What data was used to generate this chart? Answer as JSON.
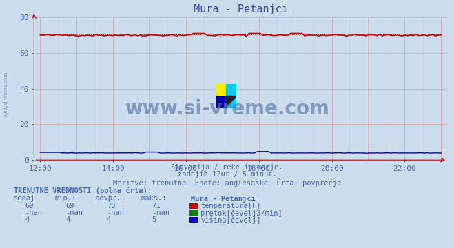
{
  "title": "Mura - Petanjci",
  "fig_bg_color": "#ccdded",
  "plot_bg_color": "#ccdded",
  "xlim": [
    11.833,
    23.167
  ],
  "ylim": [
    0,
    80
  ],
  "yticks": [
    0,
    20,
    40,
    60,
    80
  ],
  "xtick_positions": [
    12,
    14,
    16,
    18,
    20,
    22
  ],
  "xtick_labels": [
    "12:00",
    "14:00",
    "16:00",
    "18:00",
    "20:00",
    "22:00"
  ],
  "grid_color_h": "#e8a0a0",
  "grid_color_v": "#e8a0a0",
  "temp_color": "#cc0000",
  "height_color": "#0000cc",
  "flow_color": "#008800",
  "text_color": "#4466aa",
  "title_color": "#4444aa",
  "watermark_color": "#5577aa",
  "subtitle1": "Slovenija / reke in morje.",
  "subtitle2": "zadnjih 12ur / 5 minut.",
  "subtitle3": "Meritve: trenutne  Enote: anglešaške  Črta: povprečje",
  "table_header": "TRENUTNE VREDNOSTI (polna črta):",
  "col_headers": [
    "sedaj:",
    "min.:",
    "povpr.:",
    "maks.:",
    "Mura - Petanjci"
  ],
  "row1_vals": [
    "69",
    "69",
    "70",
    "71"
  ],
  "row1_label": "temperatura[F]",
  "row2_vals": [
    "-nan",
    "-nan",
    "-nan",
    "-nan"
  ],
  "row2_label": "pretok[čevelj3/min]",
  "row3_vals": [
    "4",
    "4",
    "4",
    "5"
  ],
  "row3_label": "višina[čevelj]",
  "temp_avg": 70.5,
  "temp_base": 70.0,
  "height_base": 4.0,
  "watermark_text": "www.si-vreme.com",
  "left_label": "www.si-vreme.com"
}
